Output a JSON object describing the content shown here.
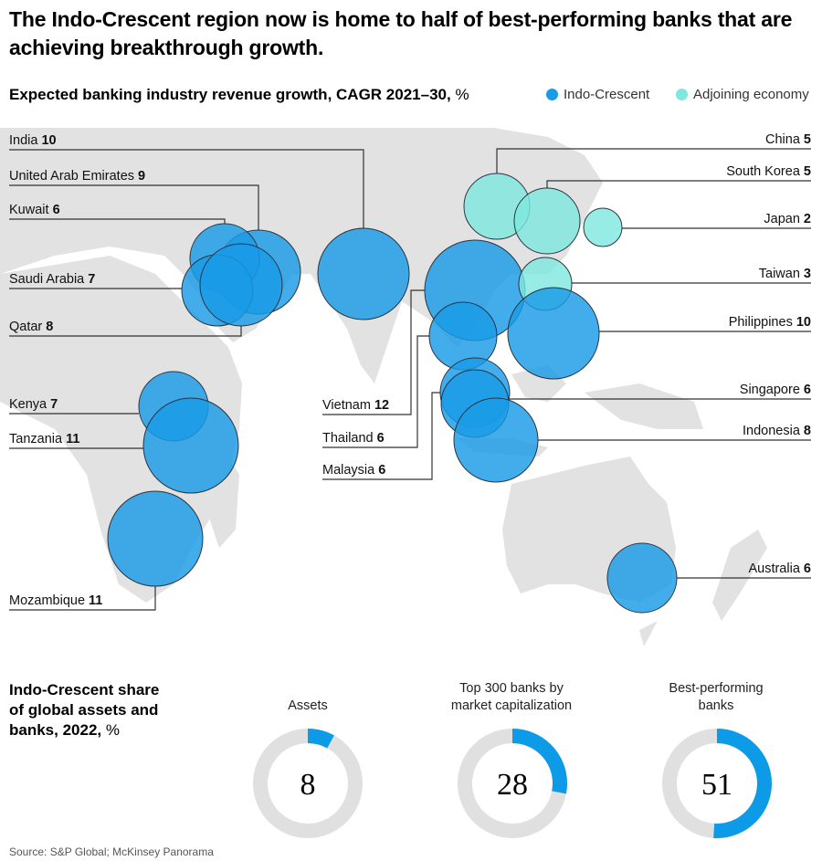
{
  "title": "The Indo-Crescent region now is home to half of best-performing banks that are achieving breakthrough growth.",
  "map_chart": {
    "subtitle": "Expected banking industry revenue growth, CAGR 2021–30,",
    "subtitle_unit": "%",
    "legend": [
      {
        "label": "Indo-Crescent",
        "color": "#1a9be6"
      },
      {
        "label": "Adjoining economy",
        "color": "#7de8e0"
      }
    ]
  },
  "chart_data": [
    {
      "type": "bubble-map",
      "title": "Expected banking industry revenue growth, CAGR 2021–30, %",
      "series": [
        {
          "name": "Indo-Crescent",
          "points": [
            {
              "country": "India",
              "value": 10
            },
            {
              "country": "United Arab Emirates",
              "value": 9
            },
            {
              "country": "Kuwait",
              "value": 6
            },
            {
              "country": "Saudi Arabia",
              "value": 7
            },
            {
              "country": "Qatar",
              "value": 8
            },
            {
              "country": "Kenya",
              "value": 7
            },
            {
              "country": "Tanzania",
              "value": 11
            },
            {
              "country": "Mozambique",
              "value": 11
            },
            {
              "country": "Vietnam",
              "value": 12
            },
            {
              "country": "Thailand",
              "value": 6
            },
            {
              "country": "Malaysia",
              "value": 6
            },
            {
              "country": "Philippines",
              "value": 10
            },
            {
              "country": "Singapore",
              "value": 6
            },
            {
              "country": "Indonesia",
              "value": 8
            },
            {
              "country": "Australia",
              "value": 6
            }
          ]
        },
        {
          "name": "Adjoining economy",
          "points": [
            {
              "country": "China",
              "value": 5
            },
            {
              "country": "South Korea",
              "value": 5
            },
            {
              "country": "Japan",
              "value": 2
            },
            {
              "country": "Taiwan",
              "value": 3
            }
          ]
        }
      ]
    },
    {
      "type": "pie",
      "title": "Indo-Crescent share of global assets and banks, 2022, %",
      "categories": [
        "Assets",
        "Top 300 banks by market capitalization",
        "Best-performing banks"
      ],
      "values": [
        8,
        28,
        51
      ]
    }
  ],
  "labels": {
    "India": "India",
    "United Arab Emirates": "United Arab Emirates",
    "Kuwait": "Kuwait",
    "Saudi Arabia": "Saudi Arabia",
    "Qatar": "Qatar",
    "Kenya": "Kenya",
    "Tanzania": "Tanzania",
    "Mozambique": "Mozambique",
    "Vietnam": "Vietnam",
    "Thailand": "Thailand",
    "Malaysia": "Malaysia",
    "China": "China",
    "South Korea": "South Korea",
    "Japan": "Japan",
    "Taiwan": "Taiwan",
    "Philippines": "Philippines",
    "Singapore": "Singapore",
    "Indonesia": "Indonesia",
    "Australia": "Australia"
  },
  "donut_section": {
    "title": "Indo-Crescent share of global assets and banks, 2022,",
    "title_unit": "%",
    "items": [
      {
        "label_line1": "",
        "label_line2": "Assets",
        "value": 8
      },
      {
        "label_line1": "Top 300 banks by",
        "label_line2": "market capitalization",
        "value": 28
      },
      {
        "label_line1": "Best-performing",
        "label_line2": "banks",
        "value": 51
      }
    ],
    "fill_color": "#0d9be8",
    "track_color": "#e0e0e0"
  },
  "source": "Source: S&P Global; McKinsey Panorama"
}
